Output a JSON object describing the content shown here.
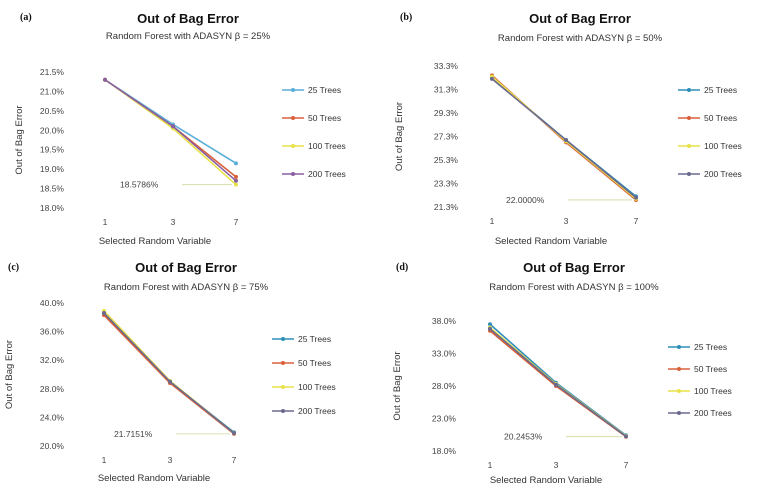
{
  "chart_data": [
    {
      "type": "line",
      "panel": "(a)",
      "title": "Out of Bag Error",
      "subtitle": "Random Forest with ADASYN β = 25%",
      "xlabel": "Selected Random Variable",
      "ylabel": "Out of Bag Error",
      "x": [
        "1",
        "3",
        "7"
      ],
      "yticks": [
        "21.5%",
        "21.0%",
        "20.5%",
        "20.0%",
        "19.5%",
        "19.0%",
        "18.5%",
        "18.0%"
      ],
      "ylim": [
        18.0,
        21.5
      ],
      "series": [
        {
          "name": "25 Trees",
          "color": "#5aaed8",
          "values": [
            21.3,
            20.15,
            19.15
          ]
        },
        {
          "name": "50 Trees",
          "color": "#d9603b",
          "values": [
            21.3,
            20.1,
            18.8
          ]
        },
        {
          "name": "100 Trees",
          "color": "#e8e24a",
          "values": [
            21.3,
            20.05,
            18.6
          ]
        },
        {
          "name": "200 Trees",
          "color": "#8a5fa0",
          "values": [
            21.3,
            20.1,
            18.7
          ]
        }
      ],
      "annotation": "18.5786%",
      "legend": "right"
    },
    {
      "type": "line",
      "panel": "(b)",
      "title": "Out of Bag Error",
      "subtitle": "Random Forest with ADASYN β = 50%",
      "xlabel": "Selected Random Variable",
      "ylabel": "Out of Bag Error",
      "x": [
        "1",
        "3",
        "7"
      ],
      "yticks": [
        "33.3%",
        "31.3%",
        "29.3%",
        "27.3%",
        "25.3%",
        "23.3%",
        "21.3%"
      ],
      "ylim": [
        21.3,
        33.3
      ],
      "series": [
        {
          "name": "25 Trees",
          "color": "#2e8fb8",
          "values": [
            32.3,
            27.0,
            22.2
          ]
        },
        {
          "name": "50 Trees",
          "color": "#d9603b",
          "values": [
            32.5,
            26.8,
            21.9
          ]
        },
        {
          "name": "100 Trees",
          "color": "#e8e24a",
          "values": [
            32.4,
            26.9,
            22.0
          ]
        },
        {
          "name": "200 Trees",
          "color": "#6a6a8f",
          "values": [
            32.2,
            27.0,
            22.1
          ]
        }
      ],
      "annotation": "22.0000%",
      "legend": "right"
    },
    {
      "type": "line",
      "panel": "(c)",
      "title": "Out of Bag Error",
      "subtitle": "Random Forest with ADASYN β = 75%",
      "xlabel": "Selected Random Variable",
      "ylabel": "Out of Bag Error",
      "x": [
        "1",
        "3",
        "7"
      ],
      "yticks": [
        "40.0%",
        "36.0%",
        "32.0%",
        "28.0%",
        "24.0%",
        "20.0%"
      ],
      "ylim": [
        20.0,
        40.0
      ],
      "series": [
        {
          "name": "25 Trees",
          "color": "#2e8fb8",
          "values": [
            38.5,
            29.0,
            21.9
          ]
        },
        {
          "name": "50 Trees",
          "color": "#d9603b",
          "values": [
            38.3,
            28.8,
            21.7
          ]
        },
        {
          "name": "100 Trees",
          "color": "#e8e24a",
          "values": [
            38.9,
            29.1,
            21.8
          ]
        },
        {
          "name": "200 Trees",
          "color": "#6a6a8f",
          "values": [
            38.6,
            29.0,
            21.8
          ]
        }
      ],
      "annotation": "21.7151%",
      "legend": "right"
    },
    {
      "type": "line",
      "panel": "(d)",
      "title": "Out of Bag Error",
      "subtitle": "Random Forest with ADASYN β = 100%",
      "xlabel": "Selected Random Variable",
      "ylabel": "Out of Bag Error",
      "x": [
        "1",
        "3",
        "7"
      ],
      "yticks": [
        "38.0%",
        "33.0%",
        "28.0%",
        "23.0%",
        "18.0%"
      ],
      "ylim": [
        18.0,
        38.0
      ],
      "series": [
        {
          "name": "25 Trees",
          "color": "#2e8fb8",
          "values": [
            37.5,
            28.5,
            20.4
          ]
        },
        {
          "name": "50 Trees",
          "color": "#d9603b",
          "values": [
            36.5,
            28.0,
            20.2
          ]
        },
        {
          "name": "100 Trees",
          "color": "#e8e24a",
          "values": [
            37.0,
            28.3,
            20.3
          ]
        },
        {
          "name": "200 Trees",
          "color": "#6a6a8f",
          "values": [
            36.8,
            28.2,
            20.25
          ]
        }
      ],
      "annotation": "20.2453%",
      "legend": "right"
    }
  ]
}
